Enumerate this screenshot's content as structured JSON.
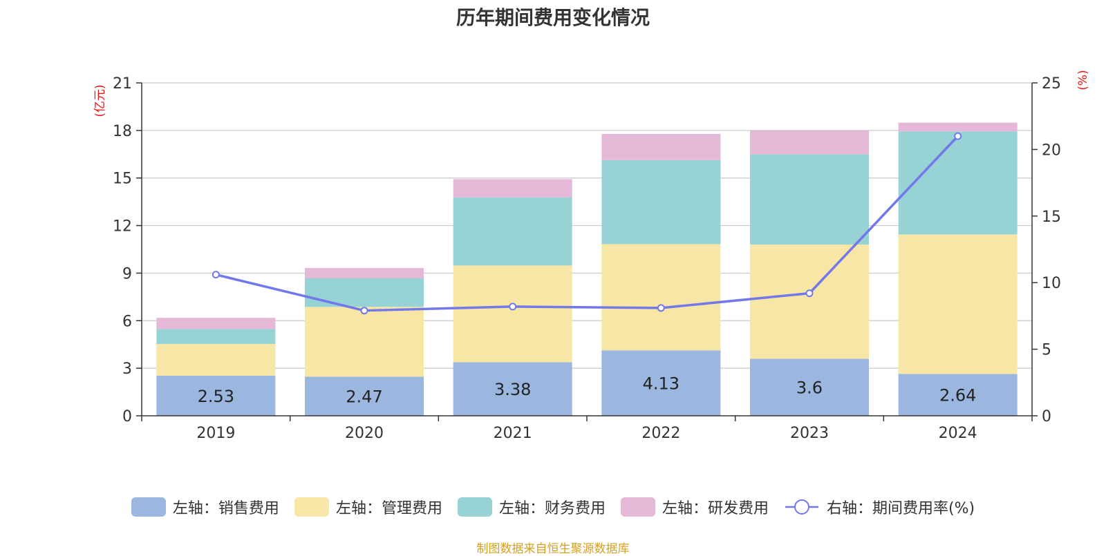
{
  "title": "历年期间费用变化情况",
  "source": "制图数据来自恒生聚源数据库",
  "colors": {
    "sales": "#9bb7e0",
    "admin": "#f7e6a6",
    "finance": "#97d3d4",
    "rd": "#e6b8d8",
    "rate": "#7277ea",
    "axis_unit": "#ee1111"
  },
  "chart_data": {
    "type": "bar",
    "stacked": true,
    "categories": [
      "2019",
      "2020",
      "2021",
      "2022",
      "2023",
      "2024"
    ],
    "series": [
      {
        "name": "左轴：销售费用",
        "axis": "left",
        "values": [
          2.53,
          2.47,
          3.38,
          4.13,
          3.6,
          2.64
        ],
        "data_labels": [
          "2.53",
          "2.47",
          "3.38",
          "4.13",
          "3.6",
          "2.64"
        ]
      },
      {
        "name": "左轴：管理费用",
        "axis": "left",
        "values": [
          2.0,
          4.4,
          6.1,
          6.7,
          7.2,
          8.8
        ]
      },
      {
        "name": "左轴：财务费用",
        "axis": "left",
        "values": [
          0.95,
          1.8,
          4.3,
          5.3,
          5.7,
          6.5
        ]
      },
      {
        "name": "左轴：研发费用",
        "axis": "left",
        "values": [
          0.7,
          0.65,
          1.15,
          1.65,
          1.5,
          0.55
        ]
      },
      {
        "name": "右轴：期间费用率(%)",
        "axis": "right",
        "type": "line",
        "values": [
          10.6,
          7.9,
          8.2,
          8.1,
          9.2,
          21.0
        ]
      }
    ],
    "y_left": {
      "label": "(亿元)",
      "ylim": [
        0,
        21
      ],
      "ticks": [
        "0",
        "3",
        "6",
        "9",
        "12",
        "15",
        "18",
        "21"
      ]
    },
    "y_right": {
      "label": "(%)",
      "ylim": [
        0,
        25
      ],
      "ticks": [
        "0",
        "5",
        "10",
        "15",
        "20",
        "25"
      ]
    },
    "grid": true,
    "legend_position": "bottom"
  }
}
